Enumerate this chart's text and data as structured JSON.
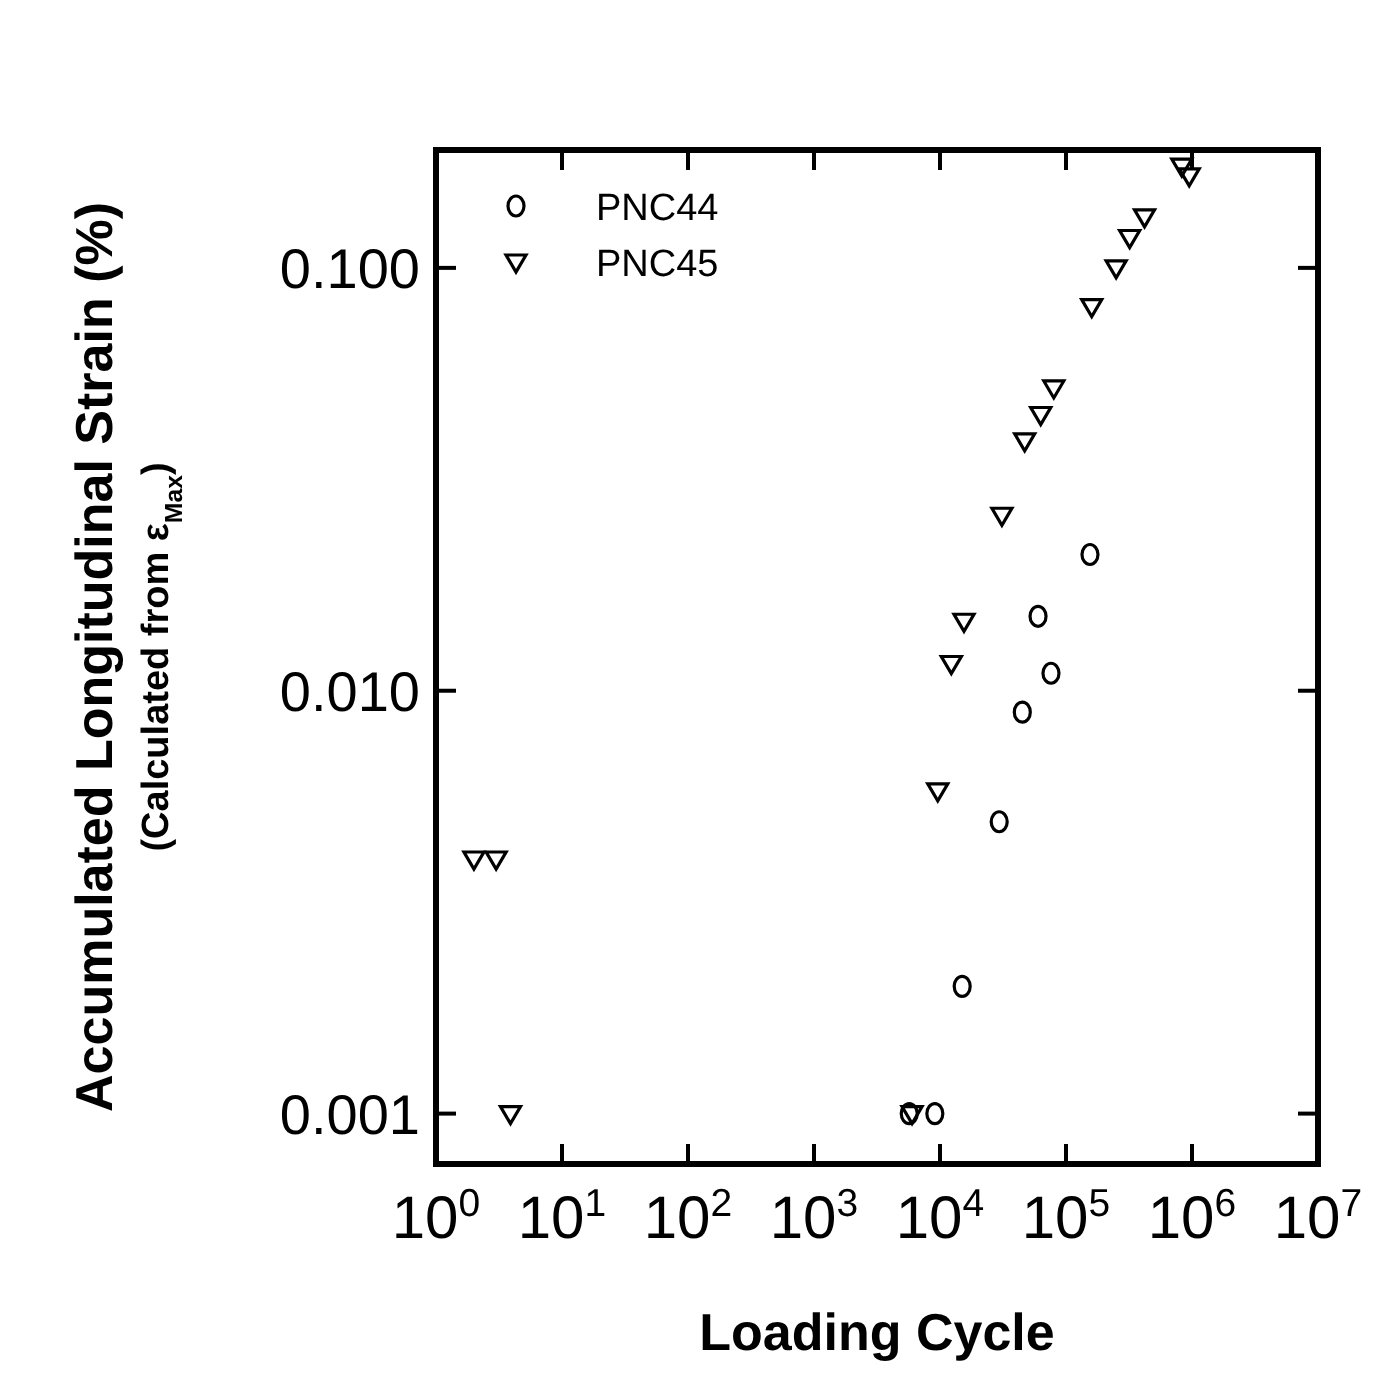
{
  "chart_data": {
    "type": "scatter",
    "xlabel": "Loading Cycle",
    "ylabel": "Accumulated  Longitudinal Strain (%)\n(Calculated from ε$_{Max}$)",
    "log": "xy",
    "grid": false,
    "legend": "top left",
    "xlim": [
      1,
      10000000
    ],
    "ylim": [
      0.00076,
      0.19
    ],
    "xticks": [
      {
        "value": 1,
        "label": "10$^{0}$"
      },
      {
        "value": 10,
        "label": "10$^{1}$"
      },
      {
        "value": 100,
        "label": "10$^{2}$"
      },
      {
        "value": 1000,
        "label": "10$^{3}$"
      },
      {
        "value": 10000,
        "label": "10$^{4}$"
      },
      {
        "value": 100000,
        "label": "10$^{5}$"
      },
      {
        "value": 1000000,
        "label": "10$^{6}$"
      },
      {
        "value": 10000000,
        "label": "10$^{7}$"
      }
    ],
    "yticks": [
      0.001,
      {
        "value": 0.01,
        "label": "0.010"
      },
      {
        "value": 0.1,
        "label": "0.100"
      }
    ],
    "series": [
      {
        "name": "PNC44",
        "color": "#000000",
        "marker": "circle",
        "x": [
          5700,
          9100,
          15000,
          29500,
          45000,
          60000,
          76000,
          155000
        ],
        "values": [
          0.001,
          0.001,
          0.002,
          0.0049,
          0.0089,
          0.015,
          0.011,
          0.021
        ]
      },
      {
        "name": "PNC45",
        "color": "#000000",
        "marker": "triangle",
        "x": [
          2.0,
          3.0,
          3.9,
          6000,
          9600,
          12300,
          15500,
          31000,
          47000,
          63000,
          80000,
          160000,
          250000,
          320000,
          420000,
          830000,
          950000
        ],
        "values": [
          0.004,
          0.004,
          0.001,
          0.001,
          0.0058,
          0.0116,
          0.0146,
          0.026,
          0.039,
          0.045,
          0.052,
          0.081,
          0.1,
          0.118,
          0.132,
          0.174,
          0.165
        ]
      }
    ]
  }
}
